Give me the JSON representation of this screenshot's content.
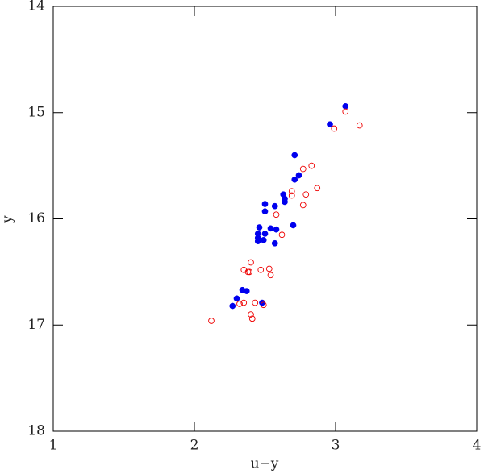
{
  "chart_data": {
    "type": "scatter",
    "xlabel": "u−y",
    "ylabel": "y",
    "xlim": [
      1,
      4
    ],
    "ylim": [
      14,
      18
    ],
    "y_reversed": true,
    "xticks": [
      1,
      2,
      3,
      4
    ],
    "yticks": [
      14,
      15,
      16,
      17,
      18
    ],
    "series": [
      {
        "color": "#0000ee",
        "marker": "filled",
        "x": [
          3.07,
          2.96,
          2.71,
          2.74,
          2.71,
          2.63,
          2.64,
          2.64,
          2.5,
          2.57,
          2.5,
          2.7,
          2.46,
          2.54,
          2.58,
          2.45,
          2.5,
          2.45,
          2.49,
          2.45,
          2.57,
          2.34,
          2.37,
          2.3,
          2.48,
          2.27
        ],
        "values": [
          14.94,
          15.11,
          15.4,
          15.59,
          15.63,
          15.77,
          15.81,
          15.84,
          15.86,
          15.88,
          15.93,
          16.06,
          16.08,
          16.09,
          16.1,
          16.14,
          16.14,
          16.18,
          16.2,
          16.21,
          16.23,
          16.67,
          16.68,
          16.75,
          16.79,
          16.82
        ]
      },
      {
        "color": "#ee0000",
        "marker": "open",
        "x": [
          3.07,
          3.17,
          2.99,
          2.83,
          2.77,
          2.87,
          2.69,
          2.69,
          2.79,
          2.77,
          2.58,
          2.62,
          2.4,
          2.35,
          2.53,
          2.47,
          2.39,
          2.38,
          2.54,
          2.32,
          2.35,
          2.43,
          2.49,
          2.4,
          2.41,
          2.12
        ],
        "values": [
          14.99,
          15.12,
          15.15,
          15.5,
          15.53,
          15.71,
          15.74,
          15.78,
          15.77,
          15.87,
          15.96,
          16.15,
          16.41,
          16.48,
          16.47,
          16.48,
          16.5,
          16.5,
          16.53,
          16.8,
          16.79,
          16.79,
          16.81,
          16.9,
          16.94,
          16.96
        ]
      }
    ]
  }
}
